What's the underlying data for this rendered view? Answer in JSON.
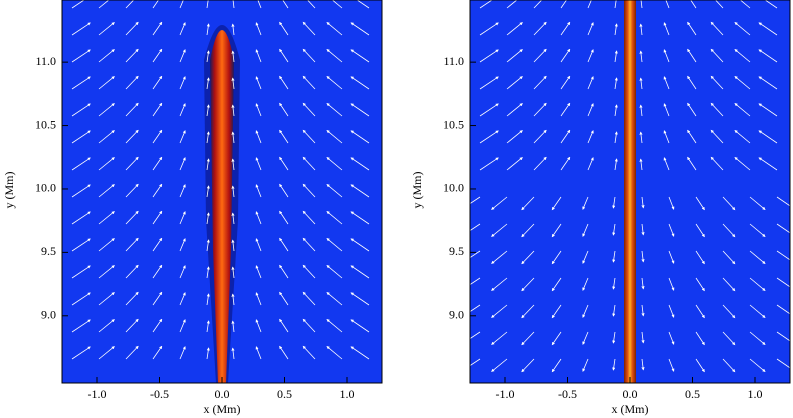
{
  "chart_data": [
    {
      "type": "heatmap",
      "xlabel": "x (Mm)",
      "ylabel": "y (Mm)",
      "xlim": [
        -1.28,
        1.28
      ],
      "ylim": [
        8.47,
        11.49
      ],
      "xticks": [
        {
          "value": -1,
          "label": "-1.0"
        },
        -0.5,
        {
          "value": 0,
          "label": "0.0"
        },
        0.5,
        {
          "value": 1,
          "label": "1.0"
        }
      ],
      "yticks": [
        {
          "value": 9,
          "label": "9.0"
        },
        9.5,
        {
          "value": 10,
          "label": "10.0"
        },
        10.5,
        {
          "value": 11,
          "label": "11.0"
        }
      ]
    },
    {
      "type": "heatmap",
      "xlabel": "x (Mm)",
      "ylabel": "y (Mm)",
      "xlim": [
        -1.28,
        1.28
      ],
      "ylim": [
        8.47,
        11.49
      ],
      "xticks": [
        {
          "value": -1,
          "label": "-1.0"
        },
        -0.5,
        {
          "value": 0,
          "label": "0.0"
        },
        0.5,
        {
          "value": 1,
          "label": "1.0"
        }
      ],
      "yticks": [
        {
          "value": 9,
          "label": "9.0"
        },
        9.5,
        {
          "value": 10,
          "label": "10.0"
        },
        10.5,
        {
          "value": 11,
          "label": "11.0"
        }
      ]
    }
  ]
}
